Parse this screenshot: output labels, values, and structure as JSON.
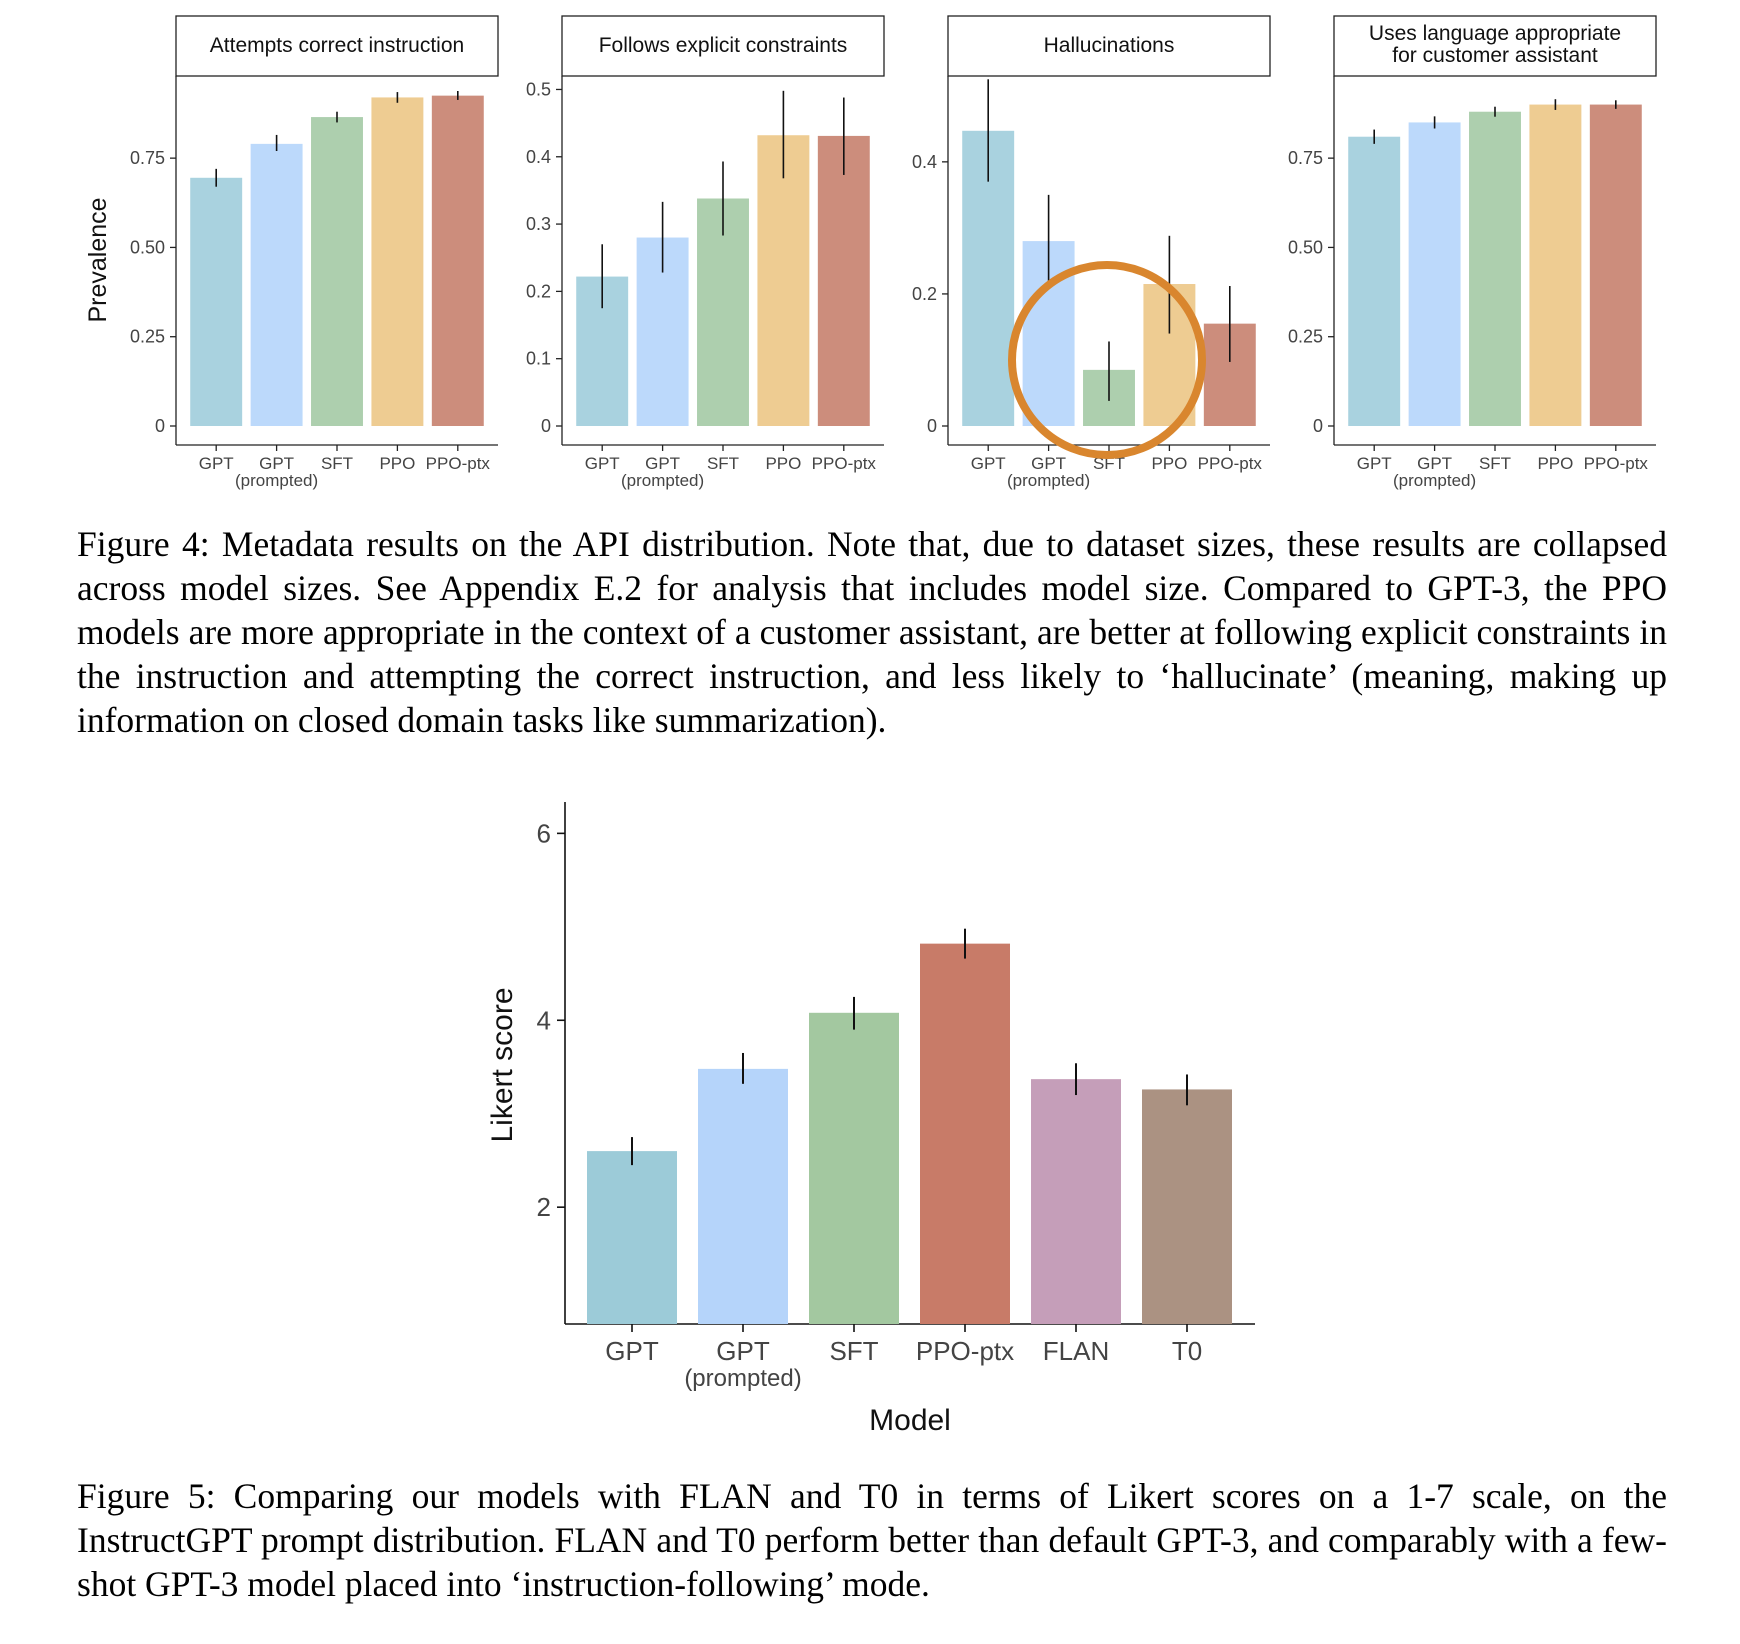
{
  "figure4": {
    "caption_label": "Figure 4:",
    "caption_text": "Metadata results on the API distribution. Note that, due to dataset sizes, these results are collapsed across model sizes. See Appendix E.2 for analysis that includes model size. Compared to GPT-3, the PPO models are more appropriate in the context of a customer assistant, are better at following explicit constraints in the instruction and attempting the correct instruction, and less likely to ‘hallucinate’ (meaning, making up information on closed domain tasks like summarization).",
    "ylabel": "Prevalence"
  },
  "figure5": {
    "caption_label": "Figure 5:",
    "caption_text": "Comparing our models with FLAN and T0 in terms of Likert scores on a 1-7 scale, on the InstructGPT prompt distribution. FLAN and T0 perform better than default GPT-3, and comparably with a few-shot GPT-3 model placed into ‘instruction-following’ mode."
  },
  "colors": {
    "GPT": "#a9d2df",
    "GPT (prompted)": "#bcd9fb",
    "SFT": "#adcfae",
    "PPO": "#eecc92",
    "PPO-ptx": "#cc8d7c",
    "annotation_circle": "#d9862e"
  },
  "chart_data": [
    {
      "type": "bar",
      "title": "Attempts correct instruction",
      "ylabel": "Prevalence",
      "categories": [
        "GPT",
        "GPT (prompted)",
        "SFT",
        "PPO",
        "PPO-ptx"
      ],
      "values": [
        0.695,
        0.79,
        0.865,
        0.92,
        0.925
      ],
      "error": [
        [
          0.67,
          0.72
        ],
        [
          0.77,
          0.815
        ],
        [
          0.85,
          0.88
        ],
        [
          0.905,
          0.935
        ],
        [
          0.913,
          0.938
        ]
      ],
      "yticks": [
        0,
        0.25,
        0.5,
        0.75
      ],
      "ytick_labels": [
        "0",
        "0.25",
        "0.50",
        "0.75"
      ],
      "ylim": [
        0,
        0.98
      ],
      "grid": false
    },
    {
      "type": "bar",
      "title": "Follows explicit constraints",
      "categories": [
        "GPT",
        "GPT (prompted)",
        "SFT",
        "PPO",
        "PPO-ptx"
      ],
      "values": [
        0.222,
        0.28,
        0.338,
        0.432,
        0.431
      ],
      "error": [
        [
          0.175,
          0.27
        ],
        [
          0.228,
          0.333
        ],
        [
          0.283,
          0.393
        ],
        [
          0.368,
          0.498
        ],
        [
          0.373,
          0.488
        ]
      ],
      "yticks": [
        0,
        0.1,
        0.2,
        0.3,
        0.4,
        0.5
      ],
      "ytick_labels": [
        "0",
        "0.1",
        "0.2",
        "0.3",
        "0.4",
        "0.5"
      ],
      "ylim": [
        0,
        0.52
      ],
      "grid": false
    },
    {
      "type": "bar",
      "title": "Hallucinations",
      "categories": [
        "GPT",
        "GPT (prompted)",
        "SFT",
        "PPO",
        "PPO-ptx"
      ],
      "values": [
        0.447,
        0.28,
        0.085,
        0.215,
        0.155
      ],
      "error": [
        [
          0.37,
          0.525
        ],
        [
          0.207,
          0.35
        ],
        [
          0.038,
          0.128
        ],
        [
          0.14,
          0.288
        ],
        [
          0.097,
          0.212
        ]
      ],
      "yticks": [
        0,
        0.2,
        0.4
      ],
      "ytick_labels": [
        "0",
        "0.2",
        "0.4"
      ],
      "ylim": [
        0,
        0.53
      ],
      "grid": false,
      "annotation": "orange circle around GPT (prompted), SFT and PPO bars"
    },
    {
      "type": "bar",
      "title": "Uses language appropriate for customer assistant",
      "title_lines": [
        "Uses language appropriate",
        "for customer assistant"
      ],
      "categories": [
        "GPT",
        "GPT (prompted)",
        "SFT",
        "PPO",
        "PPO-ptx"
      ],
      "values": [
        0.81,
        0.85,
        0.88,
        0.9,
        0.9
      ],
      "error": [
        [
          0.79,
          0.83
        ],
        [
          0.833,
          0.867
        ],
        [
          0.866,
          0.894
        ],
        [
          0.885,
          0.915
        ],
        [
          0.888,
          0.912
        ]
      ],
      "yticks": [
        0,
        0.25,
        0.5,
        0.75
      ],
      "ytick_labels": [
        "0",
        "0.25",
        "0.50",
        "0.75"
      ],
      "ylim": [
        0,
        0.98
      ],
      "grid": false
    },
    {
      "type": "bar",
      "title": "",
      "xlabel": "Model",
      "ylabel": "Likert score",
      "categories": [
        "GPT",
        "GPT (prompted)",
        "SFT",
        "PPO-ptx",
        "FLAN",
        "T0"
      ],
      "values": [
        2.6,
        3.48,
        4.08,
        4.82,
        3.37,
        3.26
      ],
      "error": [
        [
          2.45,
          2.75
        ],
        [
          3.32,
          3.65
        ],
        [
          3.9,
          4.25
        ],
        [
          4.66,
          4.98
        ],
        [
          3.2,
          3.54
        ],
        [
          3.09,
          3.42
        ]
      ],
      "colors": [
        "#9ccbd8",
        "#b5d4fa",
        "#a3c8a0",
        "#c87b68",
        "#c59eb9",
        "#ab9282"
      ],
      "yticks": [
        2,
        4,
        6
      ],
      "ytick_labels": [
        "2",
        "4",
        "6"
      ],
      "ylim": [
        0.75,
        6.25
      ],
      "grid": false
    }
  ]
}
